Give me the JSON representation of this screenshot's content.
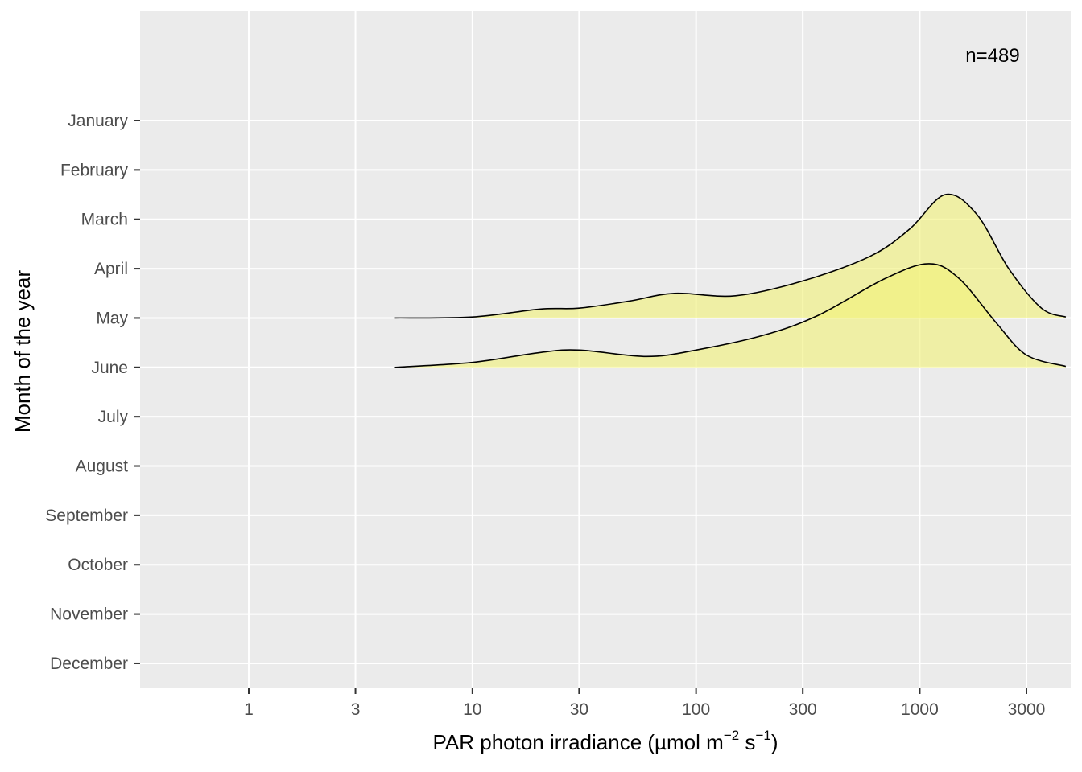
{
  "chart_data": {
    "type": "ridgeline",
    "xlabel_main": "PAR  photon  irradiance  (",
    "xlabel_unit": "µmol m",
    "xlabel_exp1": "−2",
    "xlabel_s": " s",
    "xlabel_exp2": "−1",
    "xlabel_close": ")",
    "ylabel": "Month of the year",
    "annotation": "n=489",
    "x_scale": "log10",
    "x_ticks": [
      1,
      3,
      10,
      30,
      100,
      300,
      1000,
      3000
    ],
    "x_tick_labels": [
      "1",
      "3",
      "10",
      "30",
      "100",
      "300",
      "1000",
      "3000"
    ],
    "categories": [
      "January",
      "February",
      "March",
      "April",
      "May",
      "June",
      "July",
      "August",
      "September",
      "October",
      "November",
      "December"
    ],
    "series": [
      {
        "month": "May",
        "density": [
          [
            4.5,
            0
          ],
          [
            10,
            0.02
          ],
          [
            20,
            0.18
          ],
          [
            30,
            0.2
          ],
          [
            50,
            0.34
          ],
          [
            80,
            0.5
          ],
          [
            150,
            0.45
          ],
          [
            300,
            0.75
          ],
          [
            600,
            1.25
          ],
          [
            900,
            1.8
          ],
          [
            1300,
            2.5
          ],
          [
            1800,
            2.1
          ],
          [
            2500,
            1.0
          ],
          [
            3500,
            0.2
          ],
          [
            4500,
            0.02
          ]
        ]
      },
      {
        "month": "June",
        "density": [
          [
            4.5,
            0
          ],
          [
            10,
            0.1
          ],
          [
            20,
            0.3
          ],
          [
            30,
            0.35
          ],
          [
            60,
            0.22
          ],
          [
            100,
            0.35
          ],
          [
            200,
            0.65
          ],
          [
            350,
            1.05
          ],
          [
            700,
            1.8
          ],
          [
            1100,
            2.1
          ],
          [
            1500,
            1.8
          ],
          [
            2200,
            0.9
          ],
          [
            3000,
            0.25
          ],
          [
            4500,
            0.02
          ]
        ]
      }
    ],
    "fill_color": "#f2f27a",
    "panel_color": "#ebebeb",
    "grid": true
  }
}
